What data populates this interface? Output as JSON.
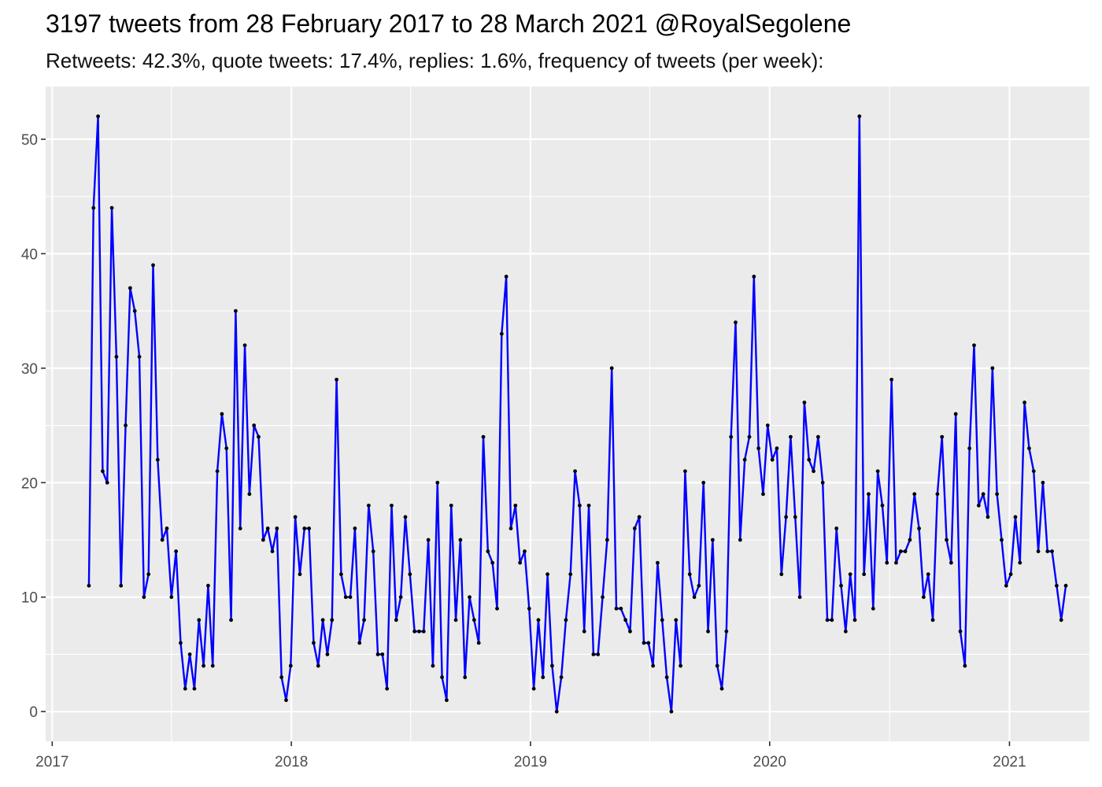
{
  "title": "3197 tweets from 28 February 2017 to 28 March 2021 @RoyalSegolene",
  "subtitle": "Retweets: 42.3%, quote tweets: 17.4%, replies: 1.6%, frequency of tweets (per week):",
  "colors": {
    "line": "#0000ff",
    "point": "#000000",
    "panel": "#ebebeb",
    "grid": "#ffffff"
  },
  "chart_data": {
    "type": "line",
    "title": "3197 tweets from 28 February 2017 to 28 March 2021 @RoyalSegolene",
    "subtitle": "Retweets: 42.3%, quote tweets: 17.4%, replies: 1.6%, frequency of tweets (per week):",
    "xlabel": "",
    "ylabel": "",
    "x_start": "2017-02-26",
    "x_step": "1 week",
    "xlim": [
      "2016-12-22",
      "2021-05-03"
    ],
    "ylim": [
      -2.6,
      54.6
    ],
    "x_ticks": [
      "2017",
      "2018",
      "2019",
      "2020",
      "2021"
    ],
    "y_ticks": [
      0,
      10,
      20,
      30,
      40,
      50
    ],
    "grid": true,
    "legend": "none",
    "series": [
      {
        "values": [
          11,
          44,
          52,
          21,
          20,
          44,
          31,
          11,
          25,
          37,
          35,
          31,
          10,
          12,
          39,
          22,
          15,
          16,
          10,
          14,
          6,
          2,
          5,
          2,
          8,
          4,
          11,
          4,
          21,
          26,
          23,
          8,
          35,
          16,
          32,
          19,
          25,
          24,
          15,
          16,
          14,
          16,
          3,
          1,
          4,
          17,
          12,
          16,
          16,
          6,
          4,
          8,
          5,
          8,
          29,
          12,
          10,
          10,
          16,
          6,
          8,
          18,
          14,
          5,
          5,
          2,
          18,
          8,
          10,
          17,
          12,
          7,
          7,
          7,
          15,
          4,
          20,
          3,
          1,
          18,
          8,
          15,
          3,
          10,
          8,
          6,
          24,
          14,
          13,
          9,
          33,
          38,
          16,
          18,
          13,
          14,
          9,
          2,
          8,
          3,
          12,
          4,
          0,
          3,
          8,
          12,
          21,
          18,
          7,
          18,
          5,
          5,
          10,
          15,
          30,
          9,
          9,
          8,
          7,
          16,
          17,
          6,
          6,
          4,
          13,
          8,
          3,
          0,
          8,
          4,
          21,
          12,
          10,
          11,
          20,
          7,
          15,
          4,
          2,
          7,
          24,
          34,
          15,
          22,
          24,
          38,
          23,
          19,
          25,
          22,
          23,
          12,
          17,
          24,
          17,
          10,
          27,
          22,
          21,
          24,
          20,
          8,
          8,
          16,
          11,
          7,
          12,
          8,
          52,
          12,
          19,
          9,
          21,
          18,
          13,
          29,
          13,
          14,
          14,
          15,
          19,
          16,
          10,
          12,
          8,
          19,
          24,
          15,
          13,
          26,
          7,
          4,
          23,
          32,
          18,
          19,
          17,
          30,
          19,
          15,
          11,
          12,
          17,
          13,
          27,
          23,
          21,
          14,
          20,
          14,
          14,
          11,
          8,
          11
        ]
      }
    ]
  }
}
